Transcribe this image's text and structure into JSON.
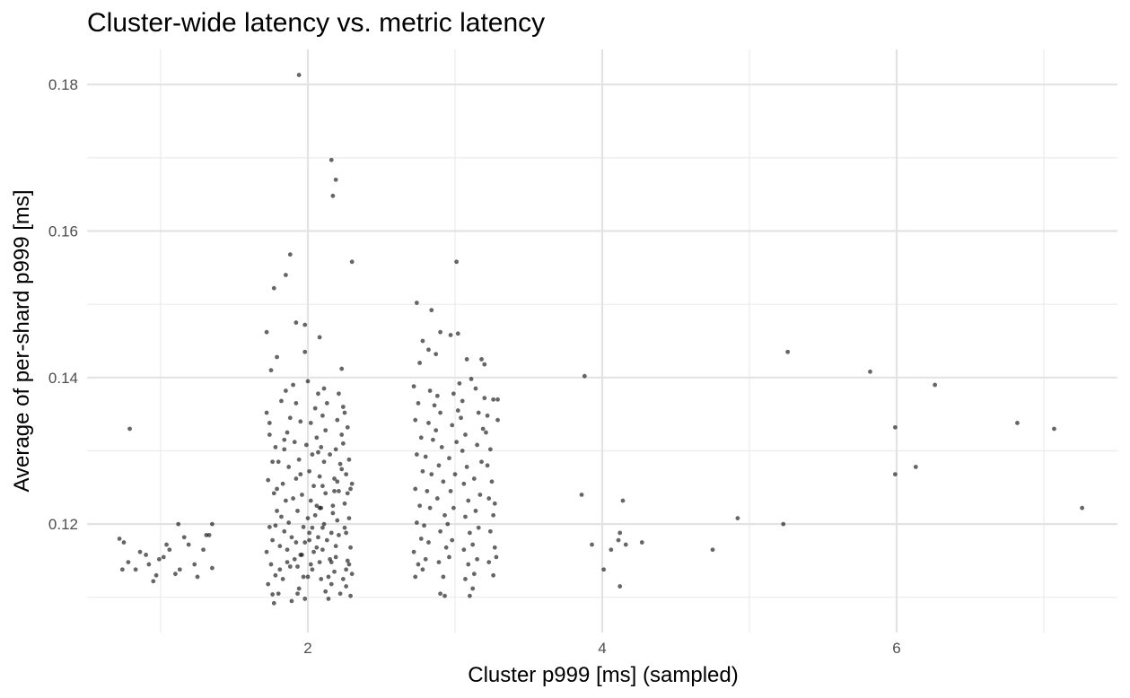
{
  "chart_data": {
    "type": "scatter",
    "title": "Cluster-wide latency vs. metric latency",
    "xlabel": "Cluster p999 [ms] (sampled)",
    "ylabel": "Average of per-shard p999 [ms]",
    "xlim": [
      0.5,
      7.5
    ],
    "ylim": [
      0.1052,
      0.1848
    ],
    "x_ticks": [
      2,
      4,
      6
    ],
    "x_tick_labels": [
      "2",
      "4",
      "6"
    ],
    "y_ticks": [
      0.12,
      0.14,
      0.16,
      0.18
    ],
    "y_tick_labels": [
      "0.12",
      "0.14",
      "0.16",
      "0.18"
    ],
    "grid": true,
    "point_color": "#000000",
    "point_opacity": 0.6,
    "points": [
      [
        0.79,
        0.133
      ],
      [
        0.72,
        0.118
      ],
      [
        0.75,
        0.1175
      ],
      [
        0.74,
        0.1138
      ],
      [
        0.78,
        0.1148
      ],
      [
        0.83,
        0.1138
      ],
      [
        0.86,
        0.1162
      ],
      [
        0.9,
        0.1158
      ],
      [
        0.92,
        0.1145
      ],
      [
        0.95,
        0.1122
      ],
      [
        0.97,
        0.113
      ],
      [
        0.99,
        0.1152
      ],
      [
        1.02,
        0.1155
      ],
      [
        1.04,
        0.1172
      ],
      [
        1.06,
        0.1165
      ],
      [
        1.1,
        0.1132
      ],
      [
        1.12,
        0.12
      ],
      [
        1.13,
        0.1138
      ],
      [
        1.16,
        0.1182
      ],
      [
        1.19,
        0.1172
      ],
      [
        1.23,
        0.1145
      ],
      [
        1.25,
        0.1128
      ],
      [
        1.29,
        0.1165
      ],
      [
        1.31,
        0.1185
      ],
      [
        1.33,
        0.1185
      ],
      [
        1.35,
        0.12
      ],
      [
        1.35,
        0.114
      ],
      [
        1.94,
        0.1813
      ],
      [
        2.16,
        0.1697
      ],
      [
        2.19,
        0.167
      ],
      [
        2.17,
        0.1648
      ],
      [
        1.88,
        0.1568
      ],
      [
        1.85,
        0.154
      ],
      [
        1.77,
        0.1522
      ],
      [
        2.3,
        0.1558
      ],
      [
        1.92,
        0.1475
      ],
      [
        1.72,
        0.1462
      ],
      [
        1.98,
        0.1472
      ],
      [
        2.08,
        0.1455
      ],
      [
        2.23,
        0.1412
      ],
      [
        1.98,
        0.1435
      ],
      [
        1.79,
        0.1428
      ],
      [
        1.75,
        0.141
      ],
      [
        1.72,
        0.1352
      ],
      [
        1.74,
        0.1322
      ],
      [
        1.78,
        0.1305
      ],
      [
        1.76,
        0.1285
      ],
      [
        1.73,
        0.126
      ],
      [
        1.77,
        0.1242
      ],
      [
        1.79,
        0.1218
      ],
      [
        1.74,
        0.1196
      ],
      [
        1.76,
        0.1178
      ],
      [
        1.72,
        0.1162
      ],
      [
        1.75,
        0.1145
      ],
      [
        1.78,
        0.113
      ],
      [
        1.73,
        0.1118
      ],
      [
        1.76,
        0.1104
      ],
      [
        1.8,
        0.1105
      ],
      [
        1.83,
        0.1125
      ],
      [
        1.86,
        0.1148
      ],
      [
        1.81,
        0.117
      ],
      [
        1.84,
        0.119
      ],
      [
        1.82,
        0.121
      ],
      [
        1.85,
        0.1232
      ],
      [
        1.83,
        0.1255
      ],
      [
        1.87,
        0.1278
      ],
      [
        1.84,
        0.1302
      ],
      [
        1.86,
        0.1325
      ],
      [
        1.88,
        0.1345
      ],
      [
        1.82,
        0.1368
      ],
      [
        1.85,
        0.1382
      ],
      [
        1.9,
        0.139
      ],
      [
        1.92,
        0.1365
      ],
      [
        1.95,
        0.134
      ],
      [
        1.91,
        0.1312
      ],
      [
        1.94,
        0.1288
      ],
      [
        1.92,
        0.1262
      ],
      [
        1.96,
        0.124
      ],
      [
        1.93,
        0.1218
      ],
      [
        1.97,
        0.1196
      ],
      [
        1.92,
        0.1175
      ],
      [
        1.95,
        0.1158
      ],
      [
        1.93,
        0.1142
      ],
      [
        1.97,
        0.1128
      ],
      [
        1.94,
        0.1112
      ],
      [
        1.98,
        0.1098
      ],
      [
        1.89,
        0.1095
      ],
      [
        1.77,
        0.1092
      ],
      [
        2.0,
        0.1128
      ],
      [
        2.02,
        0.1145
      ],
      [
        2.04,
        0.1162
      ],
      [
        2.01,
        0.1178
      ],
      [
        2.03,
        0.1195
      ],
      [
        2.05,
        0.1212
      ],
      [
        2.02,
        0.1232
      ],
      [
        2.04,
        0.1252
      ],
      [
        2.01,
        0.1272
      ],
      [
        2.03,
        0.1295
      ],
      [
        2.06,
        0.1318
      ],
      [
        2.02,
        0.1338
      ],
      [
        2.05,
        0.1358
      ],
      [
        2.0,
        0.1395
      ],
      [
        2.07,
        0.1378
      ],
      [
        2.08,
        0.1148
      ],
      [
        2.1,
        0.1165
      ],
      [
        2.07,
        0.1182
      ],
      [
        2.11,
        0.12
      ],
      [
        2.09,
        0.1222
      ],
      [
        2.12,
        0.1242
      ],
      [
        2.08,
        0.1265
      ],
      [
        2.11,
        0.1285
      ],
      [
        2.09,
        0.1305
      ],
      [
        2.12,
        0.1328
      ],
      [
        2.1,
        0.1348
      ],
      [
        2.13,
        0.1365
      ],
      [
        2.11,
        0.1385
      ],
      [
        2.09,
        0.1125
      ],
      [
        2.12,
        0.1108
      ],
      [
        2.14,
        0.1098
      ],
      [
        2.16,
        0.1118
      ],
      [
        2.18,
        0.1135
      ],
      [
        2.15,
        0.1152
      ],
      [
        2.19,
        0.117
      ],
      [
        2.16,
        0.1188
      ],
      [
        2.2,
        0.1205
      ],
      [
        2.17,
        0.1225
      ],
      [
        2.21,
        0.1245
      ],
      [
        2.18,
        0.1262
      ],
      [
        2.22,
        0.1282
      ],
      [
        2.19,
        0.1302
      ],
      [
        2.23,
        0.1322
      ],
      [
        2.2,
        0.1342
      ],
      [
        2.24,
        0.136
      ],
      [
        2.21,
        0.1378
      ],
      [
        2.25,
        0.1352
      ],
      [
        2.27,
        0.1332
      ],
      [
        2.24,
        0.131
      ],
      [
        2.28,
        0.1288
      ],
      [
        2.26,
        0.1268
      ],
      [
        2.29,
        0.1248
      ],
      [
        2.25,
        0.1228
      ],
      [
        2.28,
        0.1208
      ],
      [
        2.26,
        0.1188
      ],
      [
        2.29,
        0.1168
      ],
      [
        2.27,
        0.115
      ],
      [
        2.3,
        0.1132
      ],
      [
        2.26,
        0.1115
      ],
      [
        2.29,
        0.1102
      ],
      [
        2.22,
        0.1105
      ],
      [
        2.24,
        0.1125
      ],
      [
        1.74,
        0.1338
      ],
      [
        1.79,
        0.1248
      ],
      [
        1.81,
        0.1138
      ],
      [
        1.84,
        0.1315
      ],
      [
        1.87,
        0.1202
      ],
      [
        1.89,
        0.1182
      ],
      [
        1.91,
        0.1152
      ],
      [
        1.95,
        0.1268
      ],
      [
        1.99,
        0.1308
      ],
      [
        2.01,
        0.1188
      ],
      [
        2.03,
        0.1138
      ],
      [
        2.06,
        0.1225
      ],
      [
        2.07,
        0.1298
      ],
      [
        2.1,
        0.1252
      ],
      [
        2.13,
        0.1178
      ],
      [
        2.15,
        0.1295
      ],
      [
        2.17,
        0.1215
      ],
      [
        2.19,
        0.1155
      ],
      [
        2.21,
        0.1185
      ],
      [
        2.23,
        0.1275
      ],
      [
        2.25,
        0.1195
      ],
      [
        2.27,
        0.1242
      ],
      [
        2.28,
        0.1145
      ],
      [
        2.3,
        0.1255
      ],
      [
        1.8,
        0.1285
      ],
      [
        1.9,
        0.1235
      ],
      [
        2.0,
        0.1208
      ],
      [
        2.1,
        0.1195
      ],
      [
        2.2,
        0.1258
      ],
      [
        1.86,
        0.1165
      ],
      [
        1.96,
        0.1158
      ],
      [
        2.06,
        0.1168
      ],
      [
        2.16,
        0.1148
      ],
      [
        2.26,
        0.1138
      ],
      [
        1.88,
        0.1142
      ],
      [
        1.98,
        0.1175
      ],
      [
        2.08,
        0.1222
      ],
      [
        2.18,
        0.1245
      ],
      [
        1.78,
        0.1198
      ],
      [
        1.93,
        0.1105
      ],
      [
        2.14,
        0.1128
      ],
      [
        3.01,
        0.1558
      ],
      [
        2.74,
        0.1502
      ],
      [
        2.84,
        0.1492
      ],
      [
        2.9,
        0.1462
      ],
      [
        2.97,
        0.1458
      ],
      [
        3.02,
        0.146
      ],
      [
        2.78,
        0.145
      ],
      [
        2.82,
        0.1438
      ],
      [
        2.76,
        0.142
      ],
      [
        2.87,
        0.1432
      ],
      [
        3.08,
        0.1425
      ],
      [
        3.18,
        0.1425
      ],
      [
        3.2,
        0.1418
      ],
      [
        3.11,
        0.1398
      ],
      [
        3.14,
        0.1385
      ],
      [
        3.26,
        0.137
      ],
      [
        3.29,
        0.137
      ],
      [
        2.72,
        0.1388
      ],
      [
        2.75,
        0.1365
      ],
      [
        2.73,
        0.1342
      ],
      [
        2.77,
        0.1318
      ],
      [
        2.74,
        0.1295
      ],
      [
        2.78,
        0.1272
      ],
      [
        2.73,
        0.1248
      ],
      [
        2.76,
        0.1225
      ],
      [
        2.74,
        0.1202
      ],
      [
        2.77,
        0.118
      ],
      [
        2.72,
        0.1162
      ],
      [
        2.75,
        0.1145
      ],
      [
        2.73,
        0.1128
      ],
      [
        2.78,
        0.1138
      ],
      [
        2.8,
        0.1152
      ],
      [
        2.82,
        0.1175
      ],
      [
        2.79,
        0.1198
      ],
      [
        2.83,
        0.1222
      ],
      [
        2.81,
        0.1245
      ],
      [
        2.84,
        0.1268
      ],
      [
        2.8,
        0.1292
      ],
      [
        2.85,
        0.1315
      ],
      [
        2.82,
        0.1338
      ],
      [
        2.86,
        0.1362
      ],
      [
        2.83,
        0.1382
      ],
      [
        2.88,
        0.1375
      ],
      [
        2.9,
        0.1352
      ],
      [
        2.87,
        0.1328
      ],
      [
        2.91,
        0.1305
      ],
      [
        2.89,
        0.128
      ],
      [
        2.92,
        0.1258
      ],
      [
        2.88,
        0.1235
      ],
      [
        2.93,
        0.1212
      ],
      [
        2.9,
        0.119
      ],
      [
        2.94,
        0.1168
      ],
      [
        2.89,
        0.1148
      ],
      [
        2.92,
        0.1128
      ],
      [
        2.9,
        0.1105
      ],
      [
        2.93,
        0.1102
      ],
      [
        2.96,
        0.1155
      ],
      [
        2.98,
        0.1178
      ],
      [
        2.95,
        0.12
      ],
      [
        2.99,
        0.1222
      ],
      [
        2.97,
        0.1245
      ],
      [
        3.0,
        0.1268
      ],
      [
        2.96,
        0.129
      ],
      [
        3.01,
        0.1312
      ],
      [
        2.98,
        0.1335
      ],
      [
        3.02,
        0.1355
      ],
      [
        2.99,
        0.1378
      ],
      [
        3.03,
        0.1392
      ],
      [
        3.05,
        0.1368
      ],
      [
        3.04,
        0.1345
      ],
      [
        3.07,
        0.1322
      ],
      [
        3.05,
        0.13
      ],
      [
        3.08,
        0.1278
      ],
      [
        3.06,
        0.1255
      ],
      [
        3.09,
        0.1232
      ],
      [
        3.07,
        0.121
      ],
      [
        3.1,
        0.1188
      ],
      [
        3.06,
        0.1165
      ],
      [
        3.09,
        0.1145
      ],
      [
        3.07,
        0.1125
      ],
      [
        3.1,
        0.1102
      ],
      [
        3.12,
        0.1112
      ],
      [
        3.13,
        0.1132
      ],
      [
        3.15,
        0.1152
      ],
      [
        3.12,
        0.1172
      ],
      [
        3.16,
        0.1195
      ],
      [
        3.14,
        0.1218
      ],
      [
        3.17,
        0.124
      ],
      [
        3.13,
        0.1262
      ],
      [
        3.18,
        0.1285
      ],
      [
        3.15,
        0.1308
      ],
      [
        3.19,
        0.133
      ],
      [
        3.16,
        0.1352
      ],
      [
        3.2,
        0.1372
      ],
      [
        3.22,
        0.1348
      ],
      [
        3.21,
        0.1325
      ],
      [
        3.24,
        0.1302
      ],
      [
        3.22,
        0.128
      ],
      [
        3.25,
        0.1258
      ],
      [
        3.23,
        0.1235
      ],
      [
        3.26,
        0.1212
      ],
      [
        3.24,
        0.119
      ],
      [
        3.27,
        0.1168
      ],
      [
        3.23,
        0.1148
      ],
      [
        3.26,
        0.113
      ],
      [
        3.28,
        0.1155
      ],
      [
        3.29,
        0.1342
      ],
      [
        3.27,
        0.1228
      ],
      [
        3.86,
        0.124
      ],
      [
        3.88,
        0.1402
      ],
      [
        3.93,
        0.1172
      ],
      [
        4.01,
        0.1138
      ],
      [
        4.06,
        0.1165
      ],
      [
        4.11,
        0.1178
      ],
      [
        4.12,
        0.1188
      ],
      [
        4.14,
        0.1232
      ],
      [
        4.16,
        0.1172
      ],
      [
        4.12,
        0.1115
      ],
      [
        4.27,
        0.1175
      ],
      [
        4.75,
        0.1165
      ],
      [
        4.92,
        0.1208
      ],
      [
        5.23,
        0.12
      ],
      [
        5.26,
        0.1435
      ],
      [
        5.82,
        0.1408
      ],
      [
        5.99,
        0.1332
      ],
      [
        5.99,
        0.1268
      ],
      [
        6.13,
        0.1278
      ],
      [
        6.26,
        0.139
      ],
      [
        6.82,
        0.1338
      ],
      [
        7.07,
        0.133
      ],
      [
        7.26,
        0.1222
      ]
    ]
  }
}
